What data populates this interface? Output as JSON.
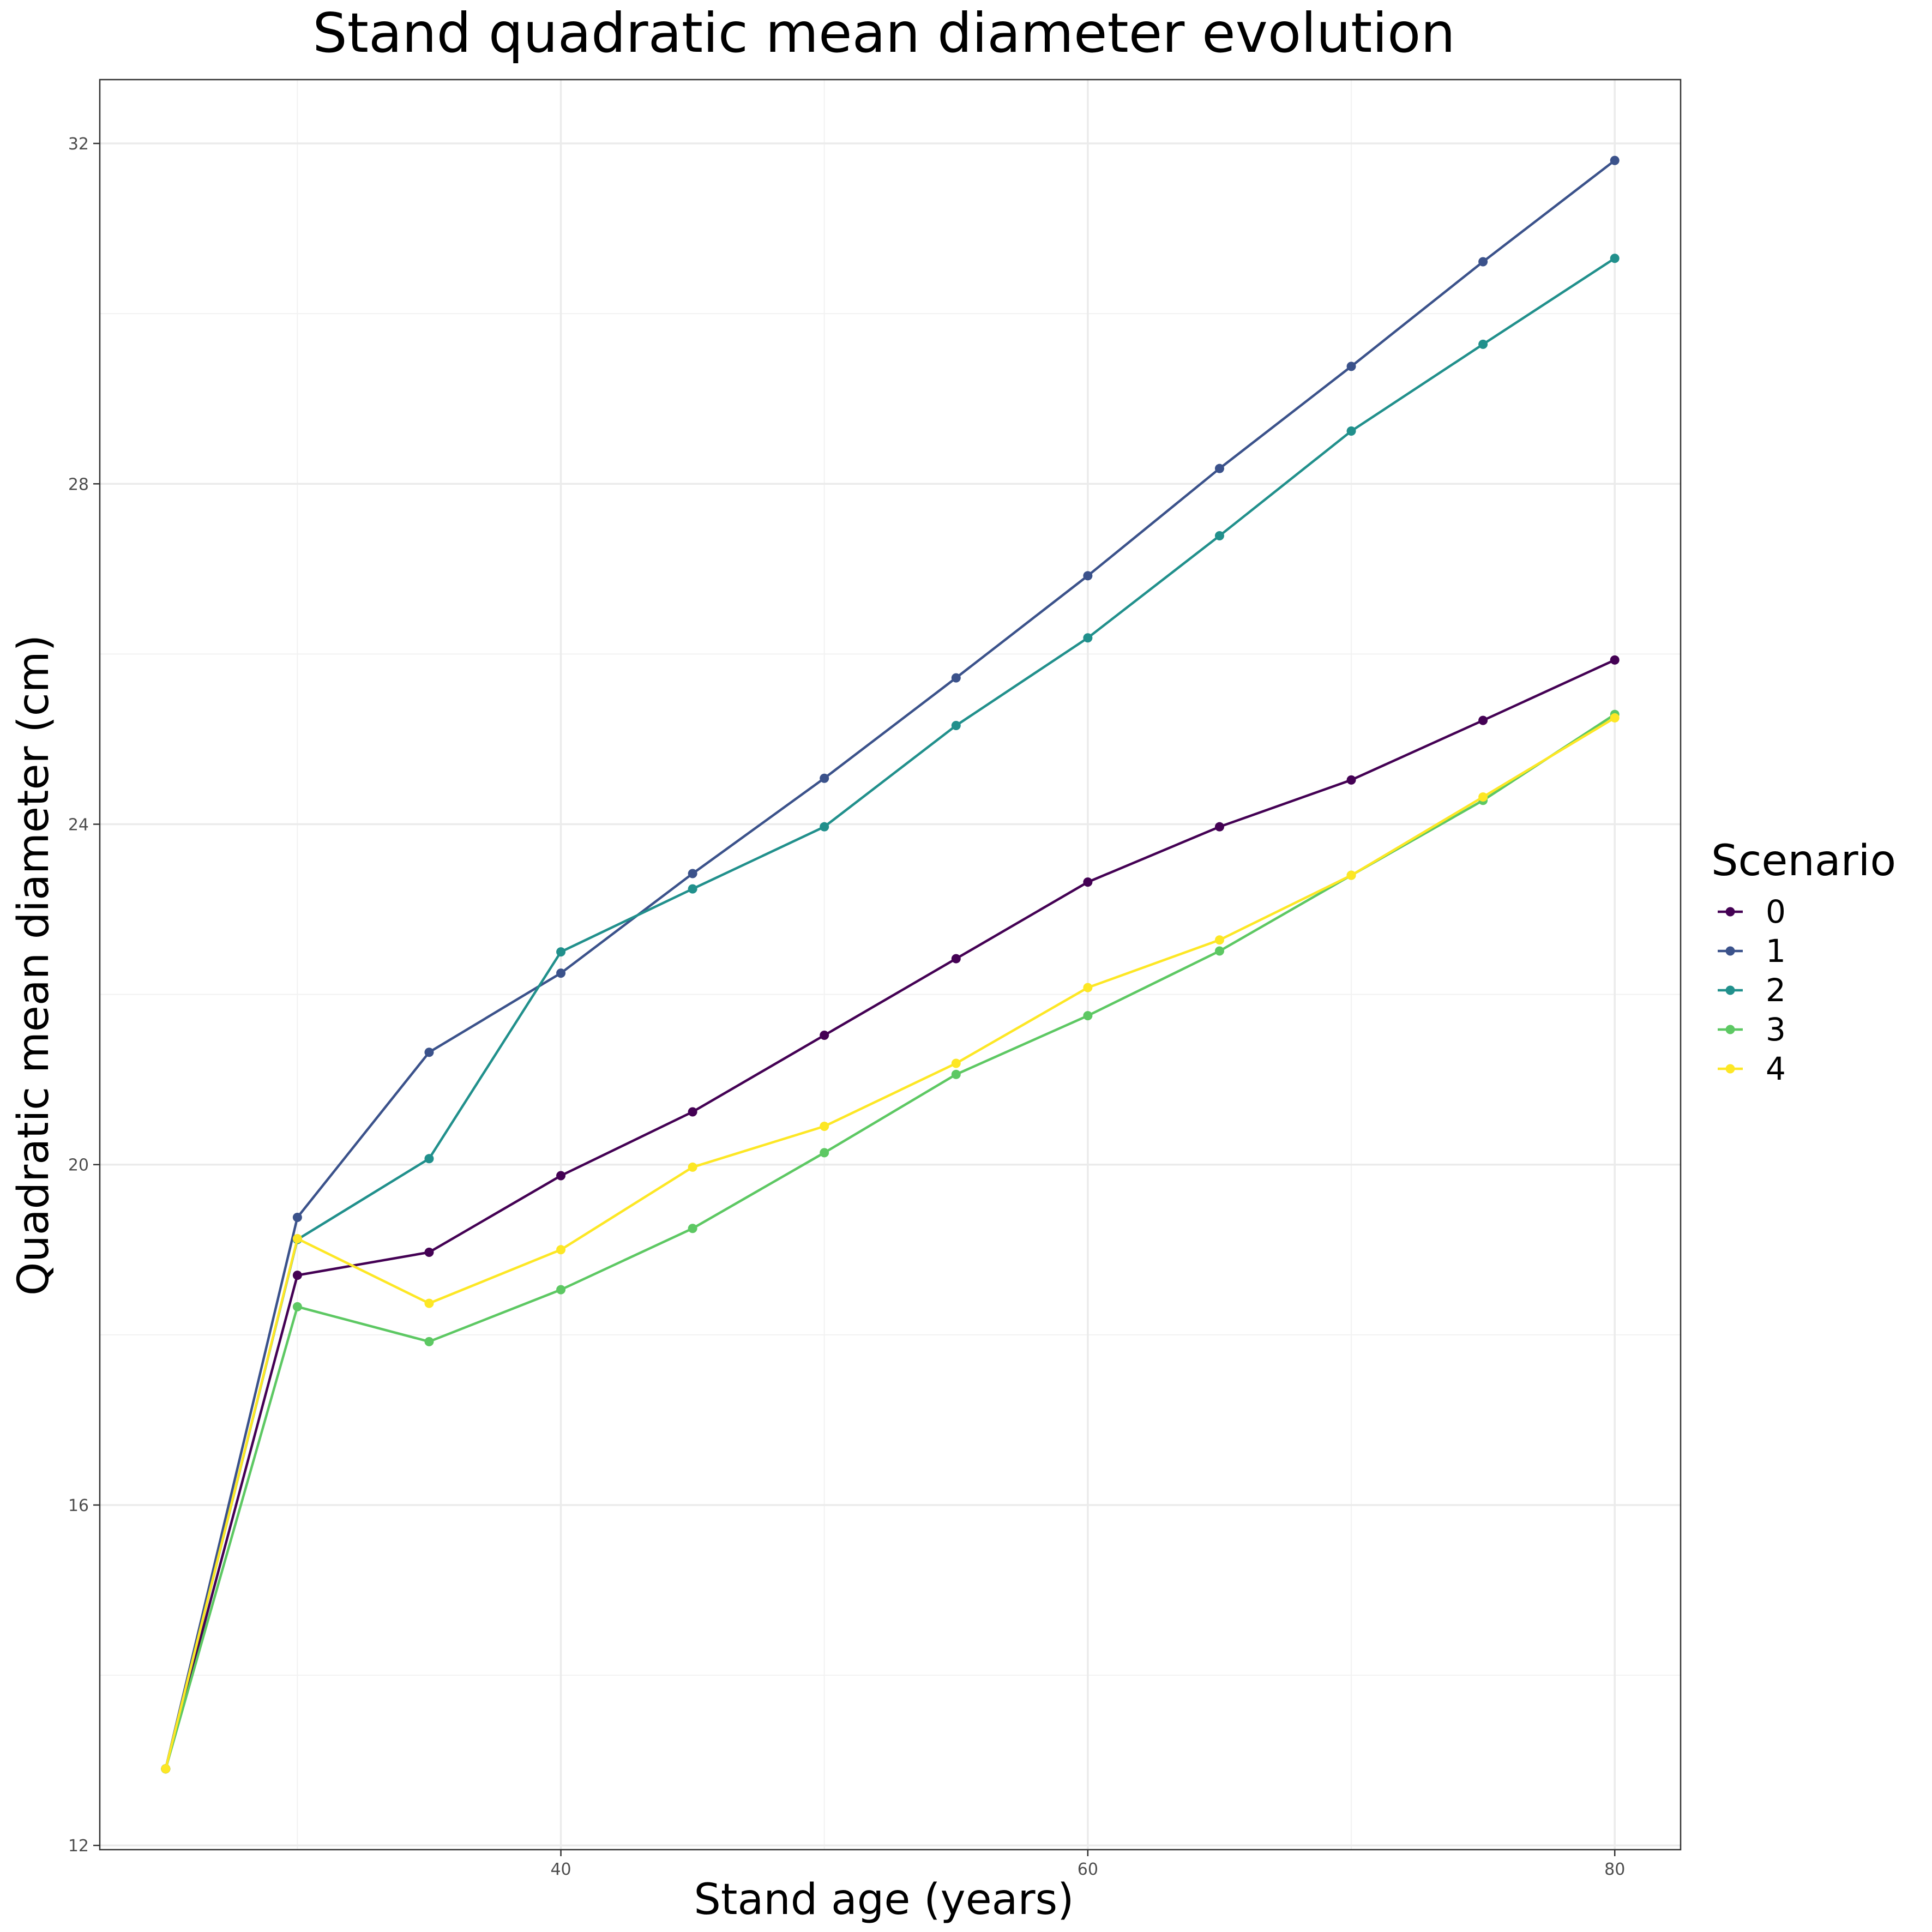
{
  "chart_data": {
    "type": "line",
    "title": "Stand quadratic mean diameter evolution",
    "xlabel": "Stand age (years)",
    "ylabel": "Quadratic mean diameter (cm)",
    "xlim": [
      22.5,
      82.5
    ],
    "ylim": [
      11.95,
      32.75
    ],
    "x_ticks": [
      40,
      60,
      80
    ],
    "y_ticks": [
      12,
      16,
      20,
      24,
      28,
      32
    ],
    "grid": true,
    "legend": {
      "title": "Scenario",
      "position": "right"
    },
    "x": [
      25,
      30,
      35,
      40,
      45,
      50,
      55,
      60,
      65,
      70,
      75,
      80
    ],
    "series": [
      {
        "name": "0",
        "color": "#440154",
        "values": [
          12.9,
          18.7,
          18.97,
          19.87,
          20.62,
          21.52,
          22.42,
          23.32,
          23.97,
          24.52,
          25.22,
          25.93
        ]
      },
      {
        "name": "1",
        "color": "#3B528B",
        "values": [
          12.9,
          19.38,
          21.32,
          22.25,
          23.42,
          24.54,
          25.72,
          26.92,
          28.18,
          29.38,
          30.61,
          31.8
        ]
      },
      {
        "name": "2",
        "color": "#21908C",
        "values": [
          12.9,
          19.12,
          20.07,
          22.5,
          23.24,
          23.97,
          25.16,
          26.19,
          27.39,
          28.62,
          29.64,
          30.65
        ]
      },
      {
        "name": "3",
        "color": "#5DC863",
        "values": [
          12.9,
          18.33,
          17.92,
          18.53,
          19.25,
          20.14,
          21.06,
          21.75,
          22.51,
          23.4,
          24.28,
          25.29
        ]
      },
      {
        "name": "4",
        "color": "#FDE725",
        "values": [
          12.9,
          19.13,
          18.37,
          19.0,
          19.97,
          20.45,
          21.19,
          22.08,
          22.64,
          23.4,
          24.32,
          25.25
        ]
      }
    ]
  }
}
